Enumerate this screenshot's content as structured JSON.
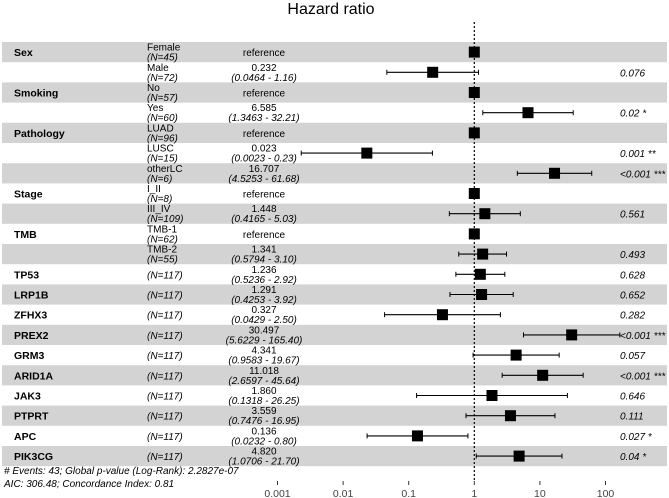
{
  "chart_data": {
    "type": "forest",
    "title": "Hazard ratio",
    "xscale": "log",
    "xlim": [
      0.001,
      300
    ],
    "x_ticks": [
      "0.001",
      "0.01",
      "0.1",
      "1",
      "10",
      "100"
    ],
    "x_tick_values": [
      0.001,
      0.01,
      0.1,
      1,
      10,
      100
    ],
    "reference_line": 1,
    "rows": [
      {
        "variable": "Sex",
        "level": "Female",
        "n": "(N=45)",
        "reference": true,
        "shade": true,
        "hr": 1,
        "hr_text": "reference"
      },
      {
        "variable": "",
        "level": "Male",
        "n": "(N=72)",
        "reference": false,
        "shade": false,
        "hr": 0.232,
        "lo": 0.0464,
        "hi": 1.16,
        "hr_text": "0.232",
        "ci_text": "(0.0464 -  1.16)",
        "p": "0.076"
      },
      {
        "variable": "Smoking",
        "level": "No",
        "n": "(N=57)",
        "reference": true,
        "shade": true,
        "hr": 1,
        "hr_text": "reference"
      },
      {
        "variable": "",
        "level": "Yes",
        "n": "(N=60)",
        "reference": false,
        "shade": false,
        "hr": 6.585,
        "lo": 1.3463,
        "hi": 32.21,
        "hr_text": "6.585",
        "ci_text": "(1.3463 -  32.21)",
        "p": "0.02 *"
      },
      {
        "variable": "Pathology",
        "level": "LUAD",
        "n": "(N=96)",
        "reference": true,
        "shade": true,
        "hr": 1,
        "hr_text": "reference"
      },
      {
        "variable": "",
        "level": "LUSC",
        "n": "(N=15)",
        "reference": false,
        "shade": false,
        "hr": 0.023,
        "lo": 0.0023,
        "hi": 0.23,
        "hr_text": "0.023",
        "ci_text": "(0.0023 -  0.23)",
        "p": "0.001 **"
      },
      {
        "variable": "",
        "level": "otherLC",
        "n": "(N=6)",
        "reference": false,
        "shade": true,
        "hr": 16.707,
        "lo": 4.5253,
        "hi": 61.68,
        "hr_text": "16.707",
        "ci_text": "(4.5253 -  61.68)",
        "p": "<0.001 ***"
      },
      {
        "variable": "Stage",
        "level": "I_II",
        "n": "(N=8)",
        "reference": true,
        "shade": false,
        "hr": 1,
        "hr_text": "reference"
      },
      {
        "variable": "",
        "level": "III_IV",
        "n": "(N=109)",
        "reference": false,
        "shade": true,
        "hr": 1.448,
        "lo": 0.4165,
        "hi": 5.03,
        "hr_text": "1.448",
        "ci_text": "(0.4165 -  5.03)",
        "p": "0.561"
      },
      {
        "variable": "TMB",
        "level": "TMB-1",
        "n": "(N=62)",
        "reference": true,
        "shade": false,
        "hr": 1,
        "hr_text": "reference"
      },
      {
        "variable": "",
        "level": "TMB-2",
        "n": "(N=55)",
        "reference": false,
        "shade": true,
        "hr": 1.341,
        "lo": 0.5794,
        "hi": 3.1,
        "hr_text": "1.341",
        "ci_text": "(0.5794 -  3.10)",
        "p": "0.493"
      },
      {
        "variable": "TP53",
        "level": "",
        "n": "(N=117)",
        "reference": false,
        "shade": false,
        "hr": 1.236,
        "lo": 0.5236,
        "hi": 2.92,
        "hr_text": "1.236",
        "ci_text": "(0.5236 -  2.92)",
        "p": "0.628"
      },
      {
        "variable": "LRP1B",
        "level": "",
        "n": "(N=117)",
        "reference": false,
        "shade": true,
        "hr": 1.291,
        "lo": 0.4253,
        "hi": 3.92,
        "hr_text": "1.291",
        "ci_text": "(0.4253 -  3.92)",
        "p": "0.652"
      },
      {
        "variable": "ZFHX3",
        "level": "",
        "n": "(N=117)",
        "reference": false,
        "shade": false,
        "hr": 0.327,
        "lo": 0.0429,
        "hi": 2.5,
        "hr_text": "0.327",
        "ci_text": "(0.0429 -  2.50)",
        "p": "0.282"
      },
      {
        "variable": "PREX2",
        "level": "",
        "n": "(N=117)",
        "reference": false,
        "shade": true,
        "hr": 30.497,
        "lo": 5.6229,
        "hi": 165.4,
        "hr_text": "30.497",
        "ci_text": "(5.6229 - 165.40)",
        "p": "<0.001 ***"
      },
      {
        "variable": "GRM3",
        "level": "",
        "n": "(N=117)",
        "reference": false,
        "shade": false,
        "hr": 4.341,
        "lo": 0.9583,
        "hi": 19.67,
        "hr_text": "4.341",
        "ci_text": "(0.9583 -  19.67)",
        "p": "0.057"
      },
      {
        "variable": "ARID1A",
        "level": "",
        "n": "(N=117)",
        "reference": false,
        "shade": true,
        "hr": 11.018,
        "lo": 2.6597,
        "hi": 45.64,
        "hr_text": "11.018",
        "ci_text": "(2.6597 -  45.64)",
        "p": "<0.001 ***"
      },
      {
        "variable": "JAK3",
        "level": "",
        "n": "(N=117)",
        "reference": false,
        "shade": false,
        "hr": 1.86,
        "lo": 0.1318,
        "hi": 26.25,
        "hr_text": "1.860",
        "ci_text": "(0.1318 -  26.25)",
        "p": "0.646"
      },
      {
        "variable": "PTPRT",
        "level": "",
        "n": "(N=117)",
        "reference": false,
        "shade": true,
        "hr": 3.559,
        "lo": 0.7476,
        "hi": 16.95,
        "hr_text": "3.559",
        "ci_text": "(0.7476 -  16.95)",
        "p": "0.111"
      },
      {
        "variable": "APC",
        "level": "",
        "n": "(N=117)",
        "reference": false,
        "shade": false,
        "hr": 0.136,
        "lo": 0.0232,
        "hi": 0.8,
        "hr_text": "0.136",
        "ci_text": "(0.0232 -  0.80)",
        "p": "0.027 *"
      },
      {
        "variable": "PIK3CG",
        "level": "",
        "n": "(N=117)",
        "reference": false,
        "shade": true,
        "hr": 4.82,
        "lo": 1.0706,
        "hi": 21.7,
        "hr_text": "4.820",
        "ci_text": "(1.0706 -  21.70)",
        "p": "0.04 *"
      }
    ],
    "footnotes": [
      "# Events: 43; Global p-value (Log-Rank): 2.2827e-07",
      "AIC: 306.48; Concordance Index: 0.81"
    ],
    "colors": {
      "shade": "#d3d3d3",
      "marker": "#000000",
      "text": "#000000"
    }
  }
}
